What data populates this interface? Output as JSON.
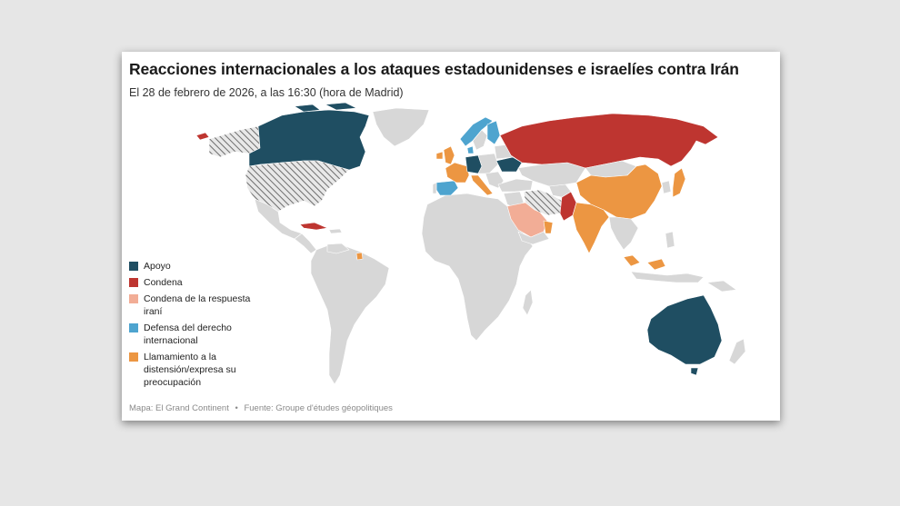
{
  "header": {
    "title": "Reacciones internacionales a los ataques estadounidenses e israelíes contra Irán",
    "subtitle": "El 28 de febrero de 2026, a las 16:30 (hora de Madrid)"
  },
  "legend": {
    "items": [
      {
        "label": "Apoyo",
        "color": "#1f4e62"
      },
      {
        "label": "Condena",
        "color": "#be3530"
      },
      {
        "label": "Condena de la respuesta iraní",
        "color": "#f2ad96"
      },
      {
        "label": "Defensa del derecho internacional",
        "color": "#4ea4cf"
      },
      {
        "label": "Llamamiento a la distensión/expresa su preocupación",
        "color": "#ec9642"
      }
    ]
  },
  "footer": {
    "map_credit": "Mapa: El Grand Continent",
    "source": "Fuente: Groupe d'études géopolitiques",
    "separator": "•"
  },
  "colors": {
    "land_default": "#d7d7d7",
    "hatch": "#7a7a7a",
    "background": "#e6e6e6"
  }
}
